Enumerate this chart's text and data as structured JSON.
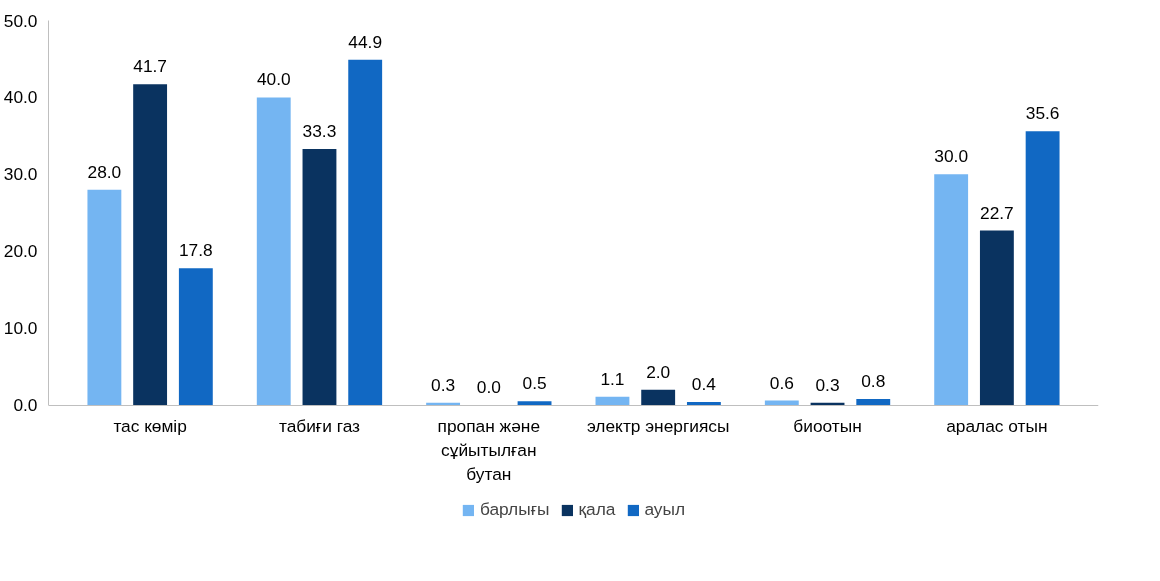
{
  "chart_data": {
    "type": "bar",
    "categories": [
      "тас көмір",
      "табиғи газ",
      "пропан және сұйытылған бутан",
      "электр энергиясы",
      "биоотын",
      "аралас отын"
    ],
    "series": [
      {
        "name": "барлығы",
        "color": "#74b5f2",
        "values": [
          28.0,
          40.0,
          0.3,
          1.1,
          0.6,
          30.0
        ],
        "value_labels": [
          "28.0",
          "40.0",
          "0.3",
          "1.1",
          "0.6",
          "30.0"
        ]
      },
      {
        "name": "қала",
        "color": "#0a3360",
        "values": [
          41.7,
          33.3,
          0.0,
          2.0,
          0.3,
          22.7
        ],
        "value_labels": [
          "41.7",
          "33.3",
          "0.0",
          "2.0",
          "0.3",
          "22.7"
        ]
      },
      {
        "name": "ауыл",
        "color": "#1168c3",
        "values": [
          17.8,
          44.9,
          0.5,
          0.4,
          0.8,
          35.6
        ],
        "value_labels": [
          "17.8",
          "44.9",
          "0.5",
          "0.4",
          "0.8",
          "35.6"
        ]
      }
    ],
    "ylim": [
      0,
      50
    ],
    "yticks": [
      {
        "value": 0,
        "label": "0.0"
      },
      {
        "value": 10,
        "label": "10.0"
      },
      {
        "value": 20,
        "label": "20.0"
      },
      {
        "value": 30,
        "label": "30.0"
      },
      {
        "value": 40,
        "label": "40.0"
      },
      {
        "value": 50,
        "label": "50.0"
      }
    ],
    "legend": "bottom"
  }
}
